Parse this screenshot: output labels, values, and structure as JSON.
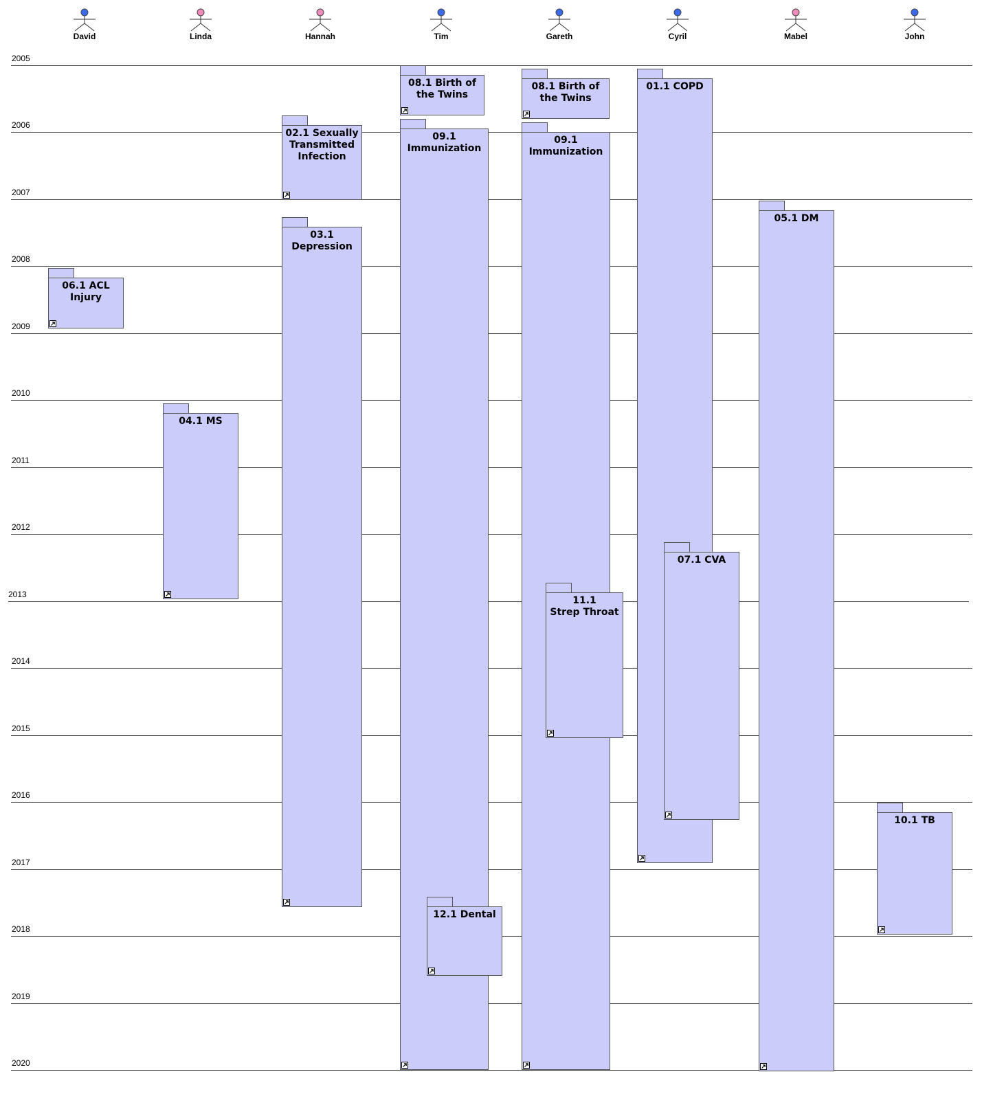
{
  "colors": {
    "package_fill": "#ccccfa",
    "male_head": "#3a6bea",
    "female_head": "#f08cbc",
    "line": "#444444"
  },
  "actors": [
    {
      "name": "David",
      "gender": "male"
    },
    {
      "name": "Linda",
      "gender": "female"
    },
    {
      "name": "Hannah",
      "gender": "female"
    },
    {
      "name": "Tim",
      "gender": "male"
    },
    {
      "name": "Gareth",
      "gender": "male"
    },
    {
      "name": "Cyril",
      "gender": "male"
    },
    {
      "name": "Mabel",
      "gender": "female"
    },
    {
      "name": "John",
      "gender": "male"
    }
  ],
  "years": [
    "2005",
    "2006",
    "2007",
    "2008",
    "2009",
    "2010",
    "2011",
    "2012",
    "2013",
    "2014",
    "2015",
    "2016",
    "2017",
    "2018",
    "2019",
    "2020"
  ],
  "packages": [
    {
      "label": "06.1 ACL\nInjury",
      "actor": "David",
      "icon": "link-icon"
    },
    {
      "label": "04.1 MS",
      "actor": "Linda",
      "icon": "link-icon"
    },
    {
      "label": "02.1 Sexually\nTransmitted\nInfection",
      "actor": "Hannah",
      "icon": "link-icon"
    },
    {
      "label": "03.1 Depression",
      "actor": "Hannah",
      "icon": "link-icon"
    },
    {
      "label": "08.1 Birth of\nthe Twins",
      "actor": "Tim",
      "icon": "link-icon"
    },
    {
      "label": "09.1 Immunization",
      "actor": "Tim",
      "icon": "link-icon"
    },
    {
      "label": "12.1 Dental",
      "actor": "Tim",
      "icon": "link-icon"
    },
    {
      "label": "08.1 Birth of\nthe Twins",
      "actor": "Gareth",
      "icon": "link-icon"
    },
    {
      "label": "09.1 Immunization",
      "actor": "Gareth",
      "icon": "link-icon"
    },
    {
      "label": "11.1\nStrep Throat",
      "actor": "Gareth",
      "icon": "link-icon"
    },
    {
      "label": "01.1 COPD",
      "actor": "Cyril",
      "icon": "link-icon"
    },
    {
      "label": "07.1 CVA",
      "actor": "Cyril",
      "icon": "link-icon"
    },
    {
      "label": "05.1 DM",
      "actor": "Mabel",
      "icon": "link-icon"
    },
    {
      "label": "10.1 TB",
      "actor": "John",
      "icon": "link-icon"
    }
  ]
}
